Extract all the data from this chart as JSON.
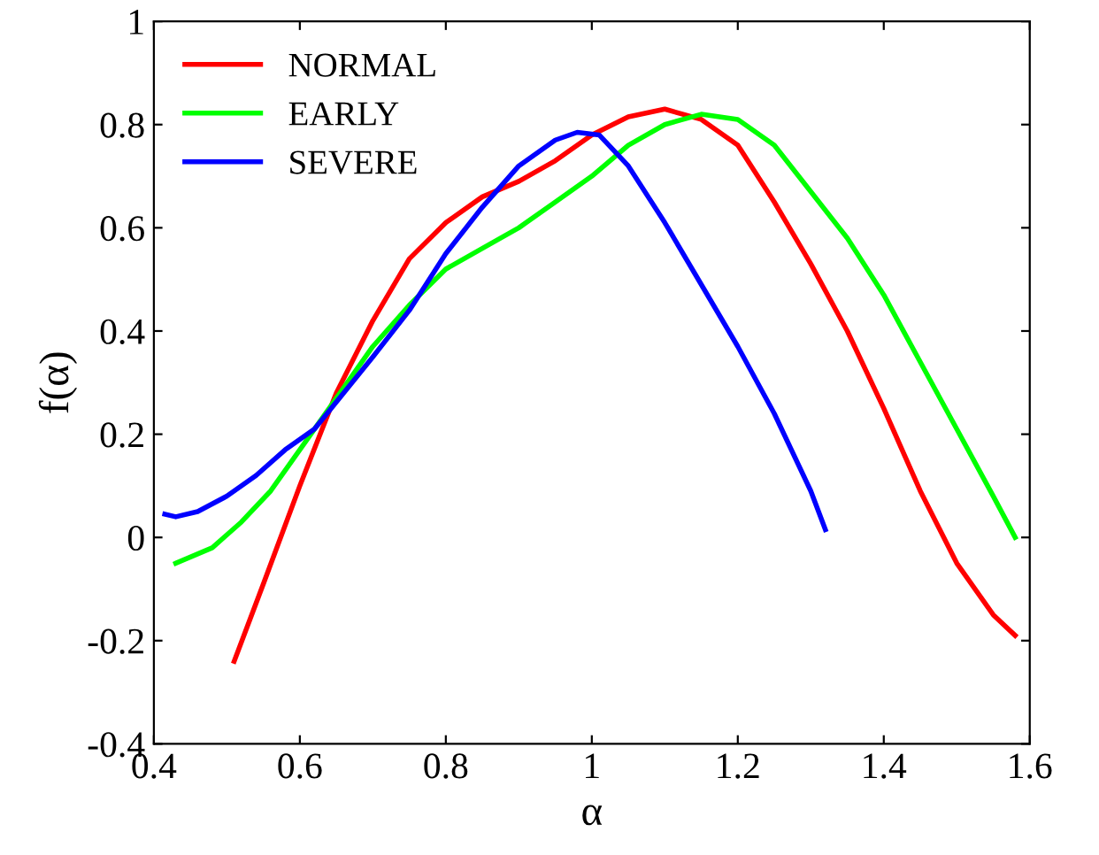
{
  "chart_data": {
    "type": "line",
    "xlabel": "α",
    "ylabel": "f(α)",
    "xlim": [
      0.4,
      1.6
    ],
    "ylim": [
      -0.4,
      1
    ],
    "xticks": [
      0.4,
      0.6,
      0.8,
      {
        "value": 1,
        "label": "1"
      },
      1.2,
      1.4,
      1.6
    ],
    "yticks": [
      -0.4,
      -0.2,
      {
        "value": 0,
        "label": "0"
      },
      0.2,
      0.4,
      0.6,
      0.8,
      {
        "value": 1,
        "label": "1"
      }
    ],
    "grid": false,
    "legend": "top left",
    "marker": "none",
    "line_style": "solid",
    "series": [
      {
        "name": "NORMAL",
        "color": "#ff0000",
        "x": [
          0.51,
          0.55,
          0.6,
          0.65,
          0.7,
          0.75,
          0.8,
          0.85,
          0.9,
          0.95,
          1.0,
          1.05,
          1.1,
          1.15,
          1.2,
          1.25,
          1.3,
          1.35,
          1.4,
          1.45,
          1.5,
          1.55,
          1.58
        ],
        "values": [
          -0.24,
          -0.09,
          0.1,
          0.28,
          0.42,
          0.54,
          0.61,
          0.66,
          0.69,
          0.73,
          0.78,
          0.815,
          0.83,
          0.81,
          0.76,
          0.65,
          0.53,
          0.4,
          0.25,
          0.09,
          -0.05,
          -0.15,
          -0.19
        ]
      },
      {
        "name": "EARLY",
        "color": "#00ff00",
        "x": [
          0.43,
          0.48,
          0.52,
          0.56,
          0.6,
          0.65,
          0.7,
          0.75,
          0.8,
          0.85,
          0.9,
          0.95,
          1.0,
          1.05,
          1.1,
          1.15,
          1.2,
          1.25,
          1.3,
          1.35,
          1.4,
          1.45,
          1.5,
          1.55,
          1.58
        ],
        "values": [
          -0.05,
          -0.02,
          0.03,
          0.09,
          0.17,
          0.27,
          0.37,
          0.45,
          0.52,
          0.56,
          0.6,
          0.65,
          0.7,
          0.76,
          0.8,
          0.82,
          0.81,
          0.76,
          0.67,
          0.58,
          0.47,
          0.34,
          0.21,
          0.08,
          0.0
        ]
      },
      {
        "name": "SEVERE",
        "color": "#0000ff",
        "x": [
          0.415,
          0.43,
          0.46,
          0.5,
          0.54,
          0.58,
          0.62,
          0.66,
          0.7,
          0.75,
          0.8,
          0.85,
          0.9,
          0.95,
          0.98,
          1.01,
          1.05,
          1.1,
          1.15,
          1.2,
          1.25,
          1.3,
          1.32
        ],
        "values": [
          0.045,
          0.04,
          0.05,
          0.08,
          0.12,
          0.17,
          0.21,
          0.28,
          0.35,
          0.44,
          0.55,
          0.64,
          0.72,
          0.77,
          0.785,
          0.78,
          0.72,
          0.61,
          0.49,
          0.37,
          0.24,
          0.09,
          0.015
        ]
      }
    ]
  }
}
